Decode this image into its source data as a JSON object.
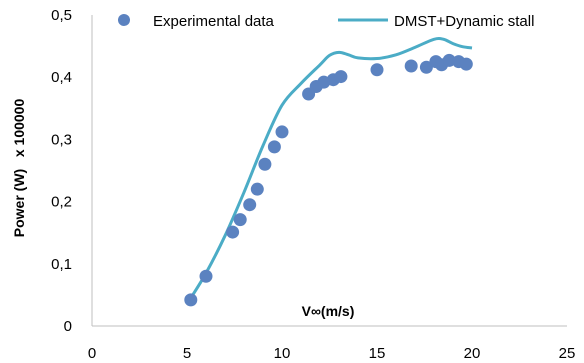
{
  "chart_data": {
    "type": "scatter",
    "xlabel": "V∞(m/s)",
    "ylabel": "Power (W)   x 100000",
    "xlim": [
      0,
      25
    ],
    "ylim": [
      0,
      0.5
    ],
    "x_ticks": [
      "0",
      "5",
      "10",
      "15",
      "20",
      "25"
    ],
    "y_ticks": [
      "0",
      "0,1",
      "0,2",
      "0,3",
      "0,4",
      "0,5"
    ],
    "grid": false,
    "legend_position": "top",
    "colors": {
      "experimental": "#5b82c0",
      "model": "#4bacc6"
    },
    "series": [
      {
        "name": "Experimental data",
        "kind": "markers",
        "points": [
          [
            5.2,
            0.042
          ],
          [
            6.0,
            0.08
          ],
          [
            7.4,
            0.151
          ],
          [
            7.8,
            0.171
          ],
          [
            8.3,
            0.195
          ],
          [
            8.7,
            0.22
          ],
          [
            9.1,
            0.26
          ],
          [
            9.6,
            0.288
          ],
          [
            10.0,
            0.312
          ],
          [
            11.4,
            0.373
          ],
          [
            11.8,
            0.385
          ],
          [
            12.2,
            0.392
          ],
          [
            12.7,
            0.396
          ],
          [
            13.1,
            0.401
          ],
          [
            15.0,
            0.412
          ],
          [
            16.8,
            0.418
          ],
          [
            17.6,
            0.416
          ],
          [
            18.1,
            0.425
          ],
          [
            18.4,
            0.42
          ],
          [
            18.8,
            0.427
          ],
          [
            19.3,
            0.425
          ],
          [
            19.7,
            0.421
          ]
        ]
      },
      {
        "name": "DMST+Dynamic stall",
        "kind": "line",
        "points": [
          [
            5.2,
            0.045
          ],
          [
            6.0,
            0.085
          ],
          [
            7.0,
            0.145
          ],
          [
            8.0,
            0.215
          ],
          [
            9.0,
            0.29
          ],
          [
            10.0,
            0.355
          ],
          [
            11.0,
            0.39
          ],
          [
            12.0,
            0.42
          ],
          [
            12.5,
            0.435
          ],
          [
            13.0,
            0.44
          ],
          [
            13.5,
            0.436
          ],
          [
            14.0,
            0.431
          ],
          [
            15.0,
            0.43
          ],
          [
            16.0,
            0.436
          ],
          [
            17.0,
            0.448
          ],
          [
            18.0,
            0.461
          ],
          [
            18.5,
            0.461
          ],
          [
            19.0,
            0.454
          ],
          [
            19.5,
            0.449
          ],
          [
            20.0,
            0.447
          ]
        ]
      }
    ]
  }
}
